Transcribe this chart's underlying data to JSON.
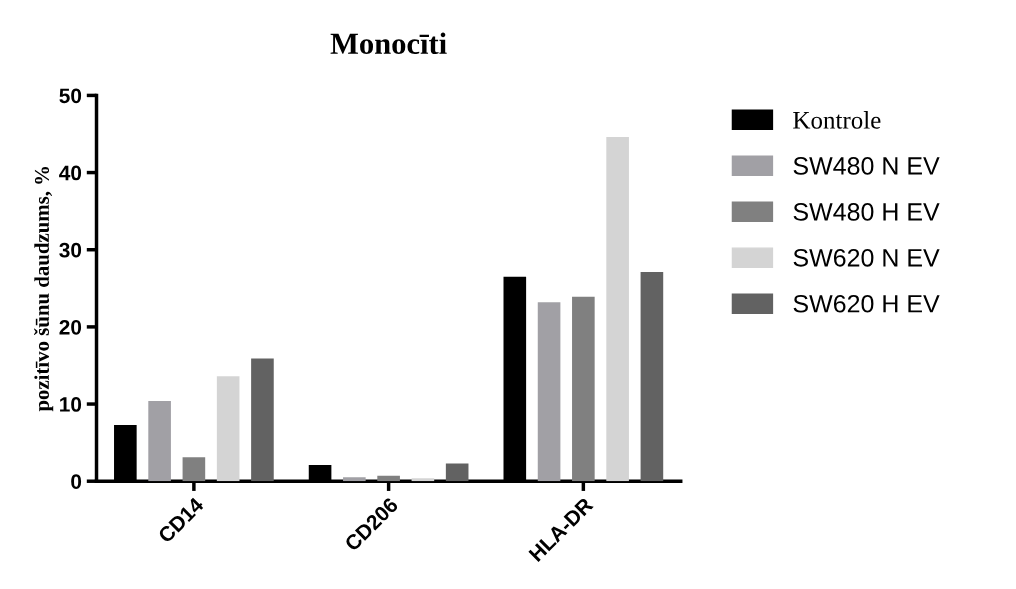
{
  "chart_data": {
    "type": "bar",
    "title": "Monocīti",
    "ylabel": "pozitīvo šūnu daudzums, %",
    "categories": [
      "CD14",
      "CD206",
      "HLA-DR"
    ],
    "series": [
      {
        "name": "Kontrole",
        "color": "#000000",
        "values": [
          7.3,
          2.1,
          26.5
        ]
      },
      {
        "name": "SW480 N EV",
        "color": "#a1a0a5",
        "values": [
          10.4,
          0.5,
          23.2
        ]
      },
      {
        "name": "SW480 H EV",
        "color": "#808080",
        "values": [
          3.1,
          0.7,
          23.9
        ]
      },
      {
        "name": "SW620 N EV",
        "color": "#d4d4d4",
        "values": [
          13.6,
          0.4,
          44.6
        ]
      },
      {
        "name": "SW620 H EV",
        "color": "#626262",
        "values": [
          15.9,
          2.3,
          27.1
        ]
      }
    ],
    "ylim": [
      0,
      50
    ],
    "yticks": [
      0,
      10,
      20,
      30,
      40,
      50
    ],
    "grid": false,
    "legend": "right"
  }
}
